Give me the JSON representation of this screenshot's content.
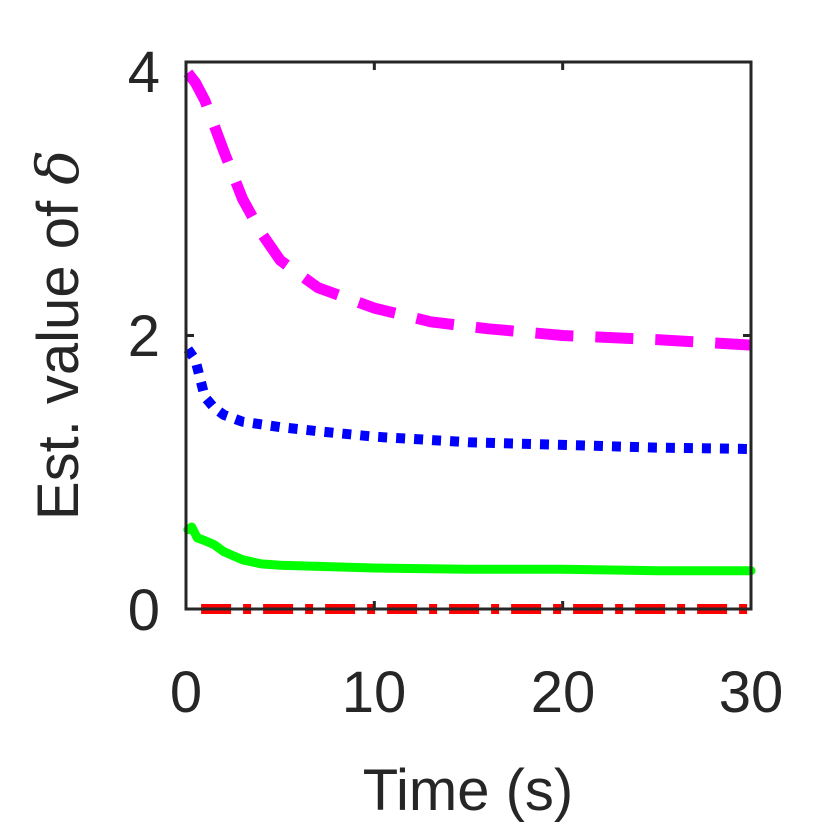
{
  "chart_data": {
    "type": "line",
    "title": "",
    "xlabel": "Time (s)",
    "ylabel_prefix": "Est. value of ",
    "ylabel_symbol": "δ",
    "xlim": [
      0,
      30
    ],
    "ylim": [
      0,
      4
    ],
    "xticks": [
      0,
      10,
      20,
      30
    ],
    "yticks": [
      0,
      2,
      4
    ],
    "xtick_labels": [
      "0",
      "10",
      "20",
      "30"
    ],
    "ytick_labels": [
      "0",
      "2",
      "4"
    ],
    "grid": false,
    "series": [
      {
        "name": "magenta-dashed",
        "color": "#ff00ff",
        "style": "dashed",
        "x": [
          0.1,
          0.5,
          1,
          2,
          3,
          4,
          5,
          7,
          10,
          13,
          16,
          20,
          25,
          30
        ],
        "y": [
          3.92,
          3.85,
          3.72,
          3.35,
          3.0,
          2.75,
          2.55,
          2.35,
          2.2,
          2.1,
          2.05,
          2.0,
          1.97,
          1.93
        ]
      },
      {
        "name": "blue-dotted",
        "color": "#0000ff",
        "style": "dotted",
        "x": [
          0.1,
          0.5,
          1,
          1.5,
          2,
          3,
          5,
          7,
          10,
          15,
          20,
          25,
          30
        ],
        "y": [
          1.9,
          1.82,
          1.55,
          1.47,
          1.42,
          1.37,
          1.33,
          1.3,
          1.26,
          1.22,
          1.2,
          1.18,
          1.17
        ]
      },
      {
        "name": "green-solid",
        "color": "#00ff00",
        "style": "solid",
        "x": [
          0.1,
          0.3,
          0.6,
          1,
          1.5,
          2,
          3,
          4,
          5,
          10,
          15,
          20,
          25,
          30
        ],
        "y": [
          0.58,
          0.6,
          0.52,
          0.5,
          0.47,
          0.42,
          0.36,
          0.33,
          0.32,
          0.3,
          0.29,
          0.29,
          0.28,
          0.28
        ]
      },
      {
        "name": "red-dashdot",
        "color": "#ff0000",
        "style": "dashdot",
        "x": [
          0.8,
          30
        ],
        "y": [
          0.0,
          0.0
        ]
      }
    ]
  }
}
